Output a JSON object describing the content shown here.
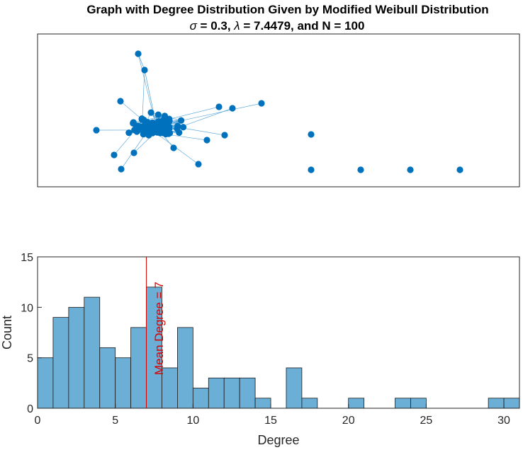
{
  "chart_data": [
    {
      "type": "network",
      "title": "Graph with Degree Distribution Given by Modified Weibull Distribution",
      "subtitle_parts": {
        "sigma_symbol": "σ",
        "sigma_value": " = 0.3, ",
        "lambda_symbol": "λ",
        "lambda_value": " = 7.4479, and N = 100"
      },
      "node_color": "#0072bd",
      "edge_color": "#4a9fd6",
      "isolated_nodes": 5,
      "total_nodes": 100
    },
    {
      "type": "bar",
      "subtype": "histogram",
      "bin_width": 1,
      "bins_start": [
        0,
        1,
        2,
        3,
        4,
        5,
        6,
        7,
        8,
        9,
        10,
        11,
        12,
        13,
        14,
        15,
        16,
        17,
        18,
        19,
        20,
        21,
        22,
        23,
        24,
        25,
        26,
        27,
        28,
        29,
        30
      ],
      "values": [
        5,
        9,
        10,
        11,
        6,
        5,
        8,
        12,
        4,
        8,
        2,
        3,
        3,
        3,
        1,
        0,
        4,
        1,
        0,
        0,
        1,
        0,
        0,
        1,
        1,
        0,
        0,
        0,
        0,
        1,
        1
      ],
      "xlabel": "Degree",
      "ylabel": "Count",
      "xlim": [
        0,
        31
      ],
      "ylim": [
        0,
        15
      ],
      "xticks": [
        "0",
        "5",
        "10",
        "15",
        "20",
        "25",
        "30"
      ],
      "yticks": [
        "0",
        "5",
        "10",
        "15"
      ],
      "bar_color": "#6baed6",
      "mean_line": {
        "x": 7,
        "label": "Mean Degree = 7",
        "color": "#d90000"
      }
    }
  ]
}
